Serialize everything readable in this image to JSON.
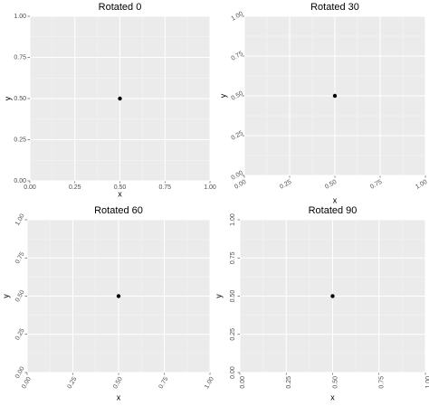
{
  "chart_data": [
    {
      "type": "scatter",
      "title": "Rotated 0",
      "xlabel": "x",
      "ylabel": "y",
      "x": [
        0.5
      ],
      "values": [
        0.5
      ],
      "color": "#000000",
      "xlim": [
        0,
        1
      ],
      "ylim": [
        0,
        1
      ],
      "xticks": [
        {
          "value": 0,
          "label": "0.00"
        },
        {
          "value": 0.25,
          "label": "0.25"
        },
        {
          "value": 0.5,
          "label": "0.50"
        },
        {
          "value": 0.75,
          "label": "0.75"
        },
        {
          "value": 1,
          "label": "1.00"
        }
      ],
      "yticks": [
        {
          "value": 0,
          "label": "0.00"
        },
        {
          "value": 0.25,
          "label": "0.25"
        },
        {
          "value": 0.5,
          "label": "0.50"
        },
        {
          "value": 0.75,
          "label": "0.75"
        },
        {
          "value": 1,
          "label": "1.00"
        }
      ],
      "tick_rotation": 0,
      "grid": true
    },
    {
      "type": "scatter",
      "title": "Rotated 30",
      "xlabel": "x",
      "ylabel": "y",
      "x": [
        0.5
      ],
      "values": [
        0.5
      ],
      "color": "#000000",
      "xlim": [
        0,
        1
      ],
      "ylim": [
        0,
        1
      ],
      "xticks": [
        {
          "value": 0,
          "label": "0.00"
        },
        {
          "value": 0.25,
          "label": "0.25"
        },
        {
          "value": 0.5,
          "label": "0.50"
        },
        {
          "value": 0.75,
          "label": "0.75"
        },
        {
          "value": 1,
          "label": "1.00"
        }
      ],
      "yticks": [
        {
          "value": 0,
          "label": "0.00"
        },
        {
          "value": 0.25,
          "label": "0.25"
        },
        {
          "value": 0.5,
          "label": "0.50"
        },
        {
          "value": 0.75,
          "label": "0.75"
        },
        {
          "value": 1,
          "label": "1.00"
        }
      ],
      "tick_rotation": 30,
      "grid": true
    },
    {
      "type": "scatter",
      "title": "Rotated 60",
      "xlabel": "x",
      "ylabel": "y",
      "x": [
        0.5
      ],
      "values": [
        0.5
      ],
      "color": "#000000",
      "xlim": [
        0,
        1
      ],
      "ylim": [
        0,
        1
      ],
      "xticks": [
        {
          "value": 0,
          "label": "0.00"
        },
        {
          "value": 0.25,
          "label": "0.25"
        },
        {
          "value": 0.5,
          "label": "0.50"
        },
        {
          "value": 0.75,
          "label": "0.75"
        },
        {
          "value": 1,
          "label": "1.00"
        }
      ],
      "yticks": [
        {
          "value": 0,
          "label": "0.00"
        },
        {
          "value": 0.25,
          "label": "0.25"
        },
        {
          "value": 0.5,
          "label": "0.50"
        },
        {
          "value": 0.75,
          "label": "0.75"
        },
        {
          "value": 1,
          "label": "1.00"
        }
      ],
      "tick_rotation": 60,
      "grid": true
    },
    {
      "type": "scatter",
      "title": "Rotated 90",
      "xlabel": "x",
      "ylabel": "y",
      "x": [
        0.5
      ],
      "values": [
        0.5
      ],
      "color": "#000000",
      "xlim": [
        0,
        1
      ],
      "ylim": [
        0,
        1
      ],
      "xticks": [
        {
          "value": 0,
          "label": "0.00"
        },
        {
          "value": 0.25,
          "label": "0.25"
        },
        {
          "value": 0.5,
          "label": "0.50"
        },
        {
          "value": 0.75,
          "label": "0.75"
        },
        {
          "value": 1,
          "label": "1.00"
        }
      ],
      "yticks": [
        {
          "value": 0,
          "label": "0.00"
        },
        {
          "value": 0.25,
          "label": "0.25"
        },
        {
          "value": 0.5,
          "label": "0.50"
        },
        {
          "value": 0.75,
          "label": "0.75"
        },
        {
          "value": 1,
          "label": "1.00"
        }
      ],
      "tick_rotation": 90,
      "grid": true
    }
  ]
}
